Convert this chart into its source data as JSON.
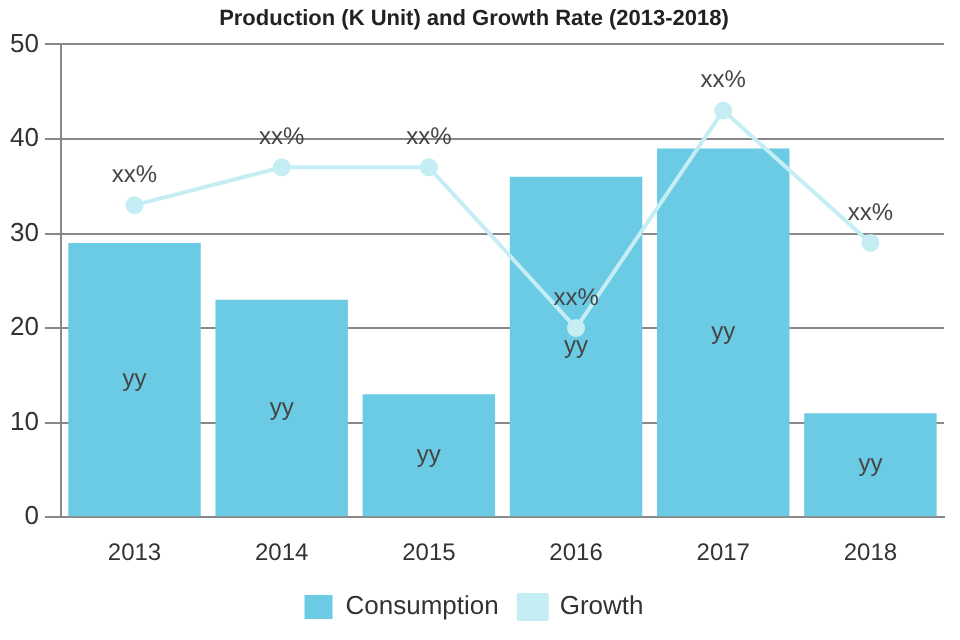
{
  "chart_data": {
    "type": "bar",
    "title": "Production (K Unit) and Growth Rate (2013-2018)",
    "categories": [
      "2013",
      "2014",
      "2015",
      "2016",
      "2017",
      "2018"
    ],
    "series": [
      {
        "name": "Consumption",
        "color": "#6ccbe4",
        "values": [
          29,
          23,
          13,
          36,
          39,
          11
        ],
        "value_labels": [
          "yy",
          "yy",
          "yy",
          "yy",
          "yy",
          "yy"
        ]
      },
      {
        "name": "Growth",
        "type": "line",
        "color": "#c4eef4",
        "values": [
          33,
          37,
          37,
          20,
          43,
          29
        ],
        "value_labels": [
          "xx%",
          "xx%",
          "xx%",
          "xx%",
          "xx%",
          "xx%"
        ]
      }
    ],
    "ylim": [
      0,
      50
    ],
    "yticks": [
      0,
      10,
      20,
      30,
      40,
      50
    ],
    "grid": "y",
    "legend": "bottom",
    "marker": "circle"
  }
}
